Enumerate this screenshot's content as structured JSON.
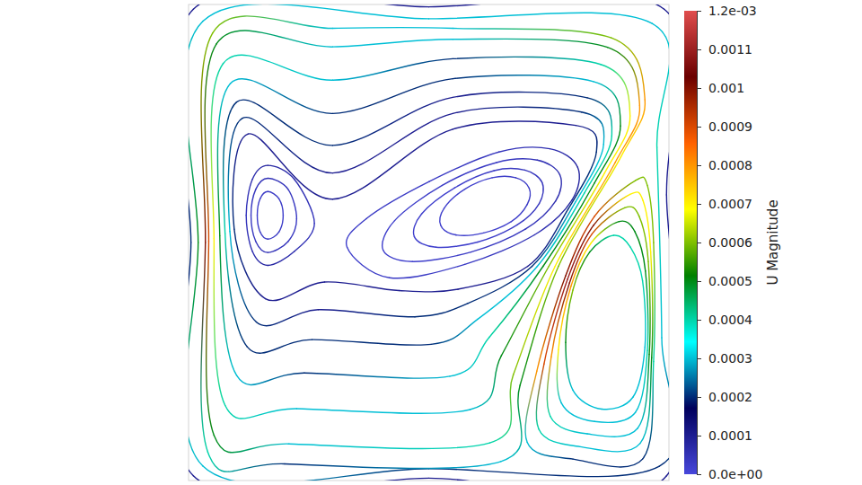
{
  "chart_data": {
    "type": "streamlines",
    "xlim": [
      0,
      1
    ],
    "ylim": [
      0,
      1
    ],
    "tick_labels": false,
    "streamlines": [
      {
        "x": [
          0.01,
          0.5,
          0.99,
          0.995,
          0.995,
          0.5,
          0.01,
          0.005
        ],
        "y": [
          0.99,
          0.995,
          0.99,
          0.6,
          0.01,
          0.005,
          0.01,
          0.5
        ],
        "values": [
          0.0001,
          0.0001,
          0.0001,
          0.0001,
          0.0001,
          0.0001,
          0.0001,
          0.0002
        ]
      },
      {
        "x": [
          0.03,
          0.5,
          0.965,
          0.975,
          0.985,
          0.98,
          0.5,
          0.03,
          0.02
        ],
        "y": [
          0.965,
          0.97,
          0.96,
          0.7,
          0.3,
          0.03,
          0.025,
          0.03,
          0.5
        ],
        "values": [
          0.0003,
          0.0003,
          0.0003,
          0.0004,
          0.0003,
          0.0002,
          0.0002,
          0.0003,
          0.0005
        ]
      },
      {
        "x": [
          0.05,
          0.3,
          0.55,
          0.88,
          0.95,
          0.9,
          0.77,
          0.69,
          0.65,
          0.2,
          0.04,
          0.035
        ],
        "y": [
          0.94,
          0.95,
          0.95,
          0.93,
          0.8,
          0.68,
          0.45,
          0.2,
          0.04,
          0.035,
          0.06,
          0.5
        ],
        "values": [
          0.0006,
          0.0003,
          0.0003,
          0.0006,
          0.0008,
          0.0007,
          0.0006,
          0.0005,
          0.0003,
          0.0002,
          0.0004,
          0.001
        ]
      },
      {
        "x": [
          0.058,
          0.3,
          0.55,
          0.872,
          0.939,
          0.888,
          0.763,
          0.676,
          0.627,
          0.209,
          0.053,
          0.042
        ],
        "y": [
          0.917,
          0.911,
          0.927,
          0.91,
          0.788,
          0.668,
          0.45,
          0.222,
          0.079,
          0.077,
          0.095,
          0.503
        ],
        "values": [
          0.0005,
          0.0003,
          0.0003,
          0.0005,
          0.0008,
          0.0008,
          0.0007,
          0.0006,
          0.0004,
          0.0003,
          0.0005,
          0.0009
        ]
      },
      {
        "x": [
          0.072,
          0.3,
          0.55,
          0.858,
          0.919,
          0.866,
          0.75,
          0.651,
          0.586,
          0.225,
          0.076,
          0.053
        ],
        "y": [
          0.876,
          0.841,
          0.886,
          0.874,
          0.766,
          0.646,
          0.45,
          0.262,
          0.149,
          0.151,
          0.158,
          0.508
        ],
        "values": [
          0.0004,
          0.0003,
          0.0002,
          0.0004,
          0.0007,
          0.0007,
          0.0006,
          0.0005,
          0.0003,
          0.0003,
          0.0004,
          0.0007
        ]
      },
      {
        "x": [
          0.087,
          0.3,
          0.55,
          0.843,
          0.899,
          0.845,
          0.738,
          0.626,
          0.544,
          0.241,
          0.1,
          0.065
        ],
        "y": [
          0.834,
          0.771,
          0.844,
          0.838,
          0.745,
          0.625,
          0.45,
          0.301,
          0.219,
          0.226,
          0.221,
          0.514
        ],
        "values": [
          0.0003,
          0.0002,
          0.0002,
          0.0003,
          0.0005,
          0.0005,
          0.0005,
          0.0004,
          0.0003,
          0.0002,
          0.0003,
          0.0005
        ]
      },
      {
        "x": [
          0.1,
          0.3,
          0.55,
          0.83,
          0.881,
          0.824,
          0.726,
          0.602,
          0.505,
          0.257,
          0.122,
          0.076
        ],
        "y": [
          0.795,
          0.704,
          0.805,
          0.804,
          0.724,
          0.604,
          0.45,
          0.339,
          0.286,
          0.296,
          0.281,
          0.519
        ],
        "values": [
          0.0002,
          0.0002,
          0.0001,
          0.0002,
          0.0004,
          0.0004,
          0.0003,
          0.0003,
          0.0002,
          0.0002,
          0.0002,
          0.0004
        ]
      },
      {
        "x": [
          0.112,
          0.3,
          0.55,
          0.818,
          0.864,
          0.806,
          0.715,
          0.581,
          0.471,
          0.27,
          0.141,
          0.086
        ],
        "y": [
          0.761,
          0.646,
          0.771,
          0.774,
          0.706,
          0.586,
          0.45,
          0.372,
          0.344,
          0.359,
          0.333,
          0.523
        ],
        "values": [
          0.0002,
          0.0001,
          0.0001,
          0.0002,
          0.0003,
          0.0003,
          0.0002,
          0.0002,
          0.0002,
          0.0001,
          0.0002,
          0.0003
        ]
      },
      {
        "x": [
          0.124,
          0.3,
          0.55,
          0.806,
          0.849,
          0.79,
          0.706,
          0.561,
          0.438,
          0.283,
          0.16,
          0.095
        ],
        "y": [
          0.728,
          0.591,
          0.738,
          0.746,
          0.69,
          0.57,
          0.45,
          0.402,
          0.399,
          0.417,
          0.382,
          0.528
        ],
        "values": [
          0.0001,
          0.0001,
          0.0001,
          0.0001,
          0.0002,
          0.0002,
          0.0001,
          0.0001,
          0.0001,
          0.0001,
          0.0001,
          0.0002
        ]
      },
      {
        "x": [
          0.81,
          0.752,
          0.646,
          0.501,
          0.37,
          0.33,
          0.418,
          0.575,
          0.72,
          0.798
        ],
        "y": [
          0.658,
          0.697,
          0.69,
          0.628,
          0.55,
          0.49,
          0.426,
          0.454,
          0.516,
          0.589
        ],
        "values": [
          8e-05,
          6e-05,
          4e-05,
          3e-05,
          3e-05,
          2e-05,
          3e-05,
          3e-05,
          5e-05,
          8e-05
        ]
      },
      {
        "x": [
          0.773,
          0.726,
          0.641,
          0.528,
          0.429,
          0.405,
          0.466,
          0.588,
          0.701,
          0.764
        ],
        "y": [
          0.642,
          0.673,
          0.668,
          0.62,
          0.546,
          0.484,
          0.46,
          0.48,
          0.528,
          0.587
        ],
        "values": [
          6e-05,
          5e-05,
          3e-05,
          3e-05,
          2e-05,
          2e-05,
          2e-05,
          3e-05,
          4e-05,
          6e-05
        ]
      },
      {
        "x": [
          0.736,
          0.7,
          0.636,
          0.554,
          0.485,
          0.47,
          0.515,
          0.602,
          0.684,
          0.73
        ],
        "y": [
          0.626,
          0.652,
          0.651,
          0.615,
          0.56,
          0.512,
          0.49,
          0.501,
          0.537,
          0.582
        ],
        "values": [
          4e-05,
          4e-05,
          3e-05,
          2e-05,
          2e-05,
          2e-05,
          2e-05,
          2e-05,
          3e-05,
          4e-05
        ]
      },
      {
        "x": [
          0.709,
          0.681,
          0.632,
          0.575,
          0.532,
          0.525,
          0.556,
          0.614,
          0.672,
          0.705
        ],
        "y": [
          0.614,
          0.636,
          0.636,
          0.612,
          0.572,
          0.536,
          0.516,
          0.52,
          0.544,
          0.58
        ],
        "values": [
          3e-05,
          3e-05,
          2e-05,
          2e-05,
          2e-05,
          2e-05,
          2e-05,
          2e-05,
          2e-05,
          3e-05
        ]
      },
      {
        "x": [
          0.262,
          0.22,
          0.165,
          0.133,
          0.12,
          0.133,
          0.165,
          0.22
        ],
        "y": [
          0.54,
          0.633,
          0.662,
          0.633,
          0.557,
          0.481,
          0.452,
          0.481
        ],
        "values": [
          4e-05,
          6e-05,
          8e-05,
          6e-05,
          4e-05,
          6e-05,
          8e-05,
          6e-05
        ]
      },
      {
        "x": [
          0.225,
          0.207,
          0.165,
          0.14,
          0.13,
          0.14,
          0.165,
          0.207
        ],
        "y": [
          0.55,
          0.612,
          0.635,
          0.612,
          0.557,
          0.502,
          0.479,
          0.502
        ],
        "values": [
          3e-05,
          4e-05,
          5e-05,
          4e-05,
          3e-05,
          4e-05,
          5e-05,
          4e-05
        ]
      },
      {
        "x": [
          0.197,
          0.188,
          0.165,
          0.149,
          0.143,
          0.149,
          0.165,
          0.188
        ],
        "y": [
          0.557,
          0.592,
          0.607,
          0.592,
          0.557,
          0.522,
          0.507,
          0.522
        ],
        "values": [
          2e-05,
          3e-05,
          3e-05,
          3e-05,
          2e-05,
          3e-05,
          3e-05,
          3e-05
        ]
      },
      {
        "x": [
          0.93,
          0.845,
          0.785,
          0.725,
          0.705,
          0.8,
          0.945,
          0.968,
          0.968,
          0.955
        ],
        "y": [
          0.63,
          0.555,
          0.43,
          0.23,
          0.08,
          0.045,
          0.045,
          0.25,
          0.5,
          0.62
        ],
        "values": [
          0.0006,
          0.0009,
          0.001,
          0.0008,
          0.0003,
          0.0002,
          0.0002,
          0.0004,
          0.0006,
          0.0006
        ]
      },
      {
        "x": [
          0.919,
          0.843,
          0.789,
          0.74,
          0.729,
          0.815,
          0.94,
          0.964,
          0.962,
          0.946
        ],
        "y": [
          0.601,
          0.536,
          0.423,
          0.245,
          0.108,
          0.071,
          0.078,
          0.258,
          0.48,
          0.588
        ],
        "values": [
          0.0007,
          0.001,
          0.0011,
          0.0009,
          0.0004,
          0.0003,
          0.0003,
          0.0005,
          0.0007,
          0.0007
        ]
      },
      {
        "x": [
          0.908,
          0.84,
          0.793,
          0.755,
          0.753,
          0.83,
          0.935,
          0.959,
          0.957,
          0.938
        ],
        "y": [
          0.573,
          0.518,
          0.415,
          0.26,
          0.135,
          0.098,
          0.11,
          0.265,
          0.46,
          0.555
        ],
        "values": [
          0.0006,
          0.0009,
          0.001,
          0.0008,
          0.0004,
          0.0003,
          0.0003,
          0.0005,
          0.0006,
          0.0006
        ]
      },
      {
        "x": [
          0.896,
          0.838,
          0.796,
          0.77,
          0.776,
          0.845,
          0.93,
          0.955,
          0.951,
          0.929
        ],
        "y": [
          0.544,
          0.499,
          0.408,
          0.275,
          0.163,
          0.124,
          0.143,
          0.273,
          0.44,
          0.523
        ],
        "values": [
          0.0005,
          0.0007,
          0.0008,
          0.0007,
          0.0003,
          0.0003,
          0.0003,
          0.0004,
          0.0005,
          0.0005
        ]
      },
      {
        "x": [
          0.885,
          0.835,
          0.8,
          0.785,
          0.8,
          0.86,
          0.925,
          0.95,
          0.945,
          0.92
        ],
        "y": [
          0.515,
          0.48,
          0.4,
          0.29,
          0.19,
          0.15,
          0.175,
          0.28,
          0.42,
          0.49
        ],
        "values": [
          0.0004,
          0.0005,
          0.0006,
          0.0005,
          0.0003,
          0.0003,
          0.0003,
          0.0003,
          0.0004,
          0.0004
        ]
      }
    ],
    "colorbar": {
      "title": "U Magnitude",
      "range": [
        0,
        0.0012
      ],
      "ticks": [
        {
          "value": 0,
          "label": "0.0e+00"
        },
        0.0001,
        0.0002,
        0.0003,
        0.0004,
        0.0005,
        0.0006,
        0.0007,
        0.0008,
        0.0009,
        0.001,
        0.0011,
        {
          "value": 0.0012,
          "label": "1.2e-03"
        }
      ],
      "colors": [
        "#4747db",
        "#00005c",
        "#00ffff",
        "#008000",
        "#ffff00",
        "#ff6100",
        "#6b0000",
        "#e04d4d"
      ]
    }
  }
}
